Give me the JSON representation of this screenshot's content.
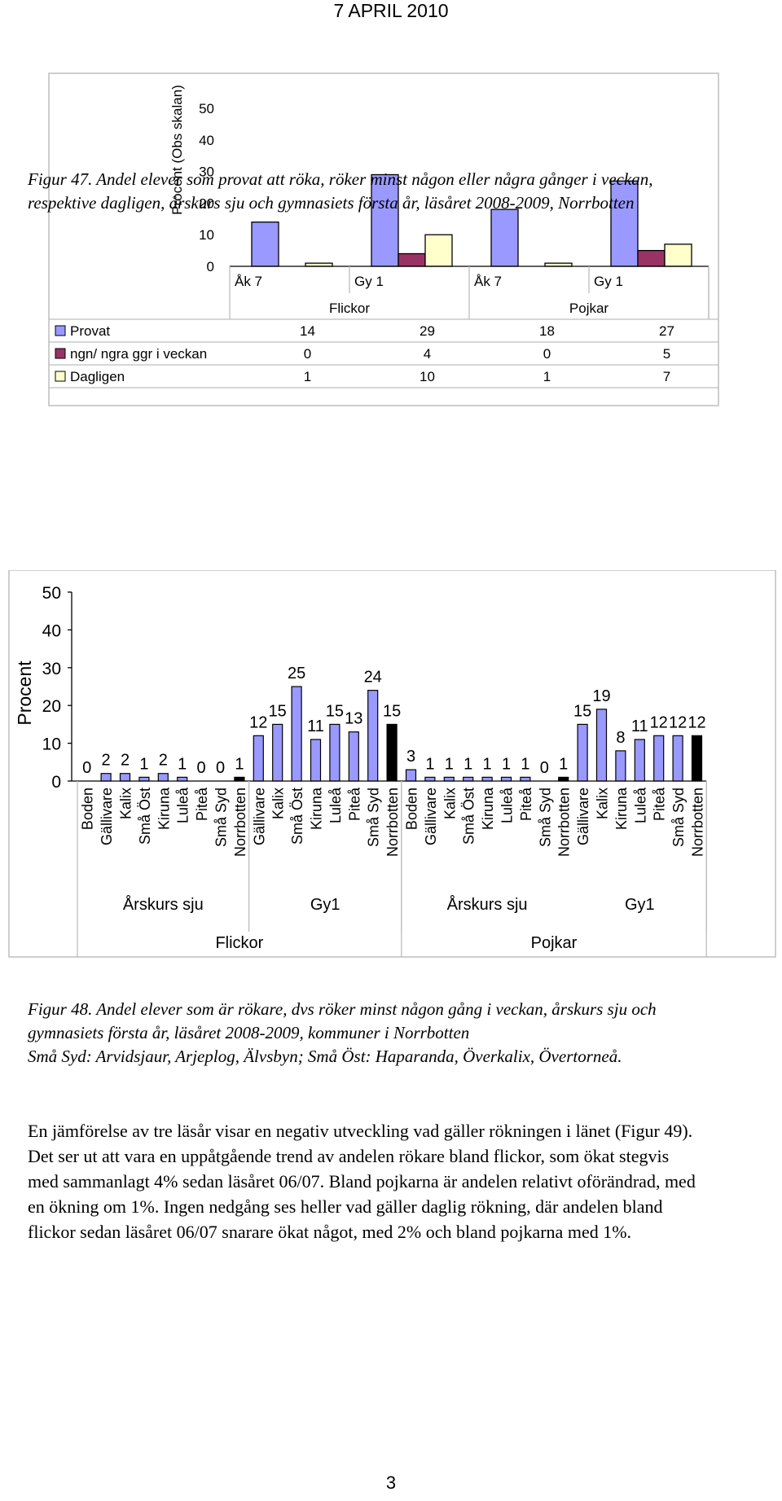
{
  "header": {
    "date": "7 APRIL 2010"
  },
  "figure47": {
    "chart_data": {
      "type": "bar",
      "ylabel": "Procent (Obs skalan)",
      "ylim": [
        0,
        50
      ],
      "yticks": [
        "50",
        "40",
        "30",
        "20",
        "10",
        "0"
      ],
      "categories": [
        "Åk 7",
        "Gy 1",
        "Åk 7",
        "Gy 1"
      ],
      "groups": [
        "Flickor",
        "Pojkar"
      ],
      "series": [
        {
          "name": "Provat",
          "color": "#9999FF",
          "values": [
            14,
            29,
            18,
            27
          ],
          "labels": [
            "14",
            "29",
            "18",
            "27"
          ]
        },
        {
          "name": "ngn/ ngra ggr i veckan",
          "color": "#993366",
          "values": [
            0,
            4,
            0,
            5
          ],
          "labels": [
            "0",
            "4",
            "0",
            "5"
          ]
        },
        {
          "name": "Dagligen",
          "color": "#FFFFCC",
          "values": [
            1,
            10,
            1,
            7
          ],
          "labels": [
            "1",
            "10",
            "1",
            "7"
          ]
        }
      ]
    },
    "caption": "Figur 47. Andel elever som provat att röka, röker minst någon eller några gånger i veckan, respektive dagligen, årskurs sju och gymnasiets första år, läsåret 2008-2009, Norrbotten"
  },
  "figure48": {
    "chart_data": {
      "type": "bar",
      "ylabel": "Procent",
      "ylim": [
        0,
        50
      ],
      "yticks": [
        "50",
        "40",
        "30",
        "20",
        "10",
        "0"
      ],
      "bar_color": "#9999FF",
      "highlight_color": "#000000",
      "segments": [
        {
          "name": "Årskurs sju",
          "group": "Flickor",
          "categories": [
            "Boden",
            "Gällivare",
            "Kalix",
            "Små Öst",
            "Kiruna",
            "Luleå",
            "Piteå",
            "Små Syd",
            "Norrbotten"
          ],
          "values": [
            0,
            2,
            2,
            1,
            2,
            1,
            0,
            0,
            1
          ],
          "labels": [
            "0",
            "2",
            "2",
            "1",
            "2",
            "1",
            "0",
            "0",
            "1"
          ]
        },
        {
          "name": "Gy1",
          "group": "Flickor",
          "categories": [
            "Gällivare",
            "Kalix",
            "Små Öst",
            "Kiruna",
            "Luleå",
            "Piteå",
            "Små Syd",
            "Norrbotten"
          ],
          "values": [
            12,
            15,
            25,
            11,
            15,
            13,
            24,
            15
          ],
          "labels": [
            "12",
            "15",
            "25",
            "11",
            "15",
            "13",
            "24",
            "15"
          ]
        },
        {
          "name": "Årskurs sju",
          "group": "Pojkar",
          "categories": [
            "Boden",
            "Gällivare",
            "Kalix",
            "Små Öst",
            "Kiruna",
            "Luleå",
            "Piteå",
            "Små Syd",
            "Norrbotten"
          ],
          "values": [
            3,
            1,
            1,
            1,
            1,
            1,
            1,
            0,
            1
          ],
          "labels": [
            "3",
            "1",
            "1",
            "1",
            "1",
            "1",
            "1",
            "0",
            "1"
          ]
        },
        {
          "name": "Gy1",
          "group": "Pojkar",
          "categories": [
            "Gällivare",
            "Kalix",
            "Kiruna",
            "Luleå",
            "Piteå",
            "Små Syd",
            "Norrbotten"
          ],
          "values": [
            15,
            19,
            8,
            11,
            12,
            12,
            12
          ],
          "labels": [
            "15",
            "19",
            "8",
            "11",
            "12",
            "12",
            "12"
          ]
        }
      ],
      "groups": [
        "Flickor",
        "Pojkar"
      ]
    },
    "caption_line1": "Figur 48. Andel elever som är rökare, dvs röker minst någon gång i veckan, årskurs sju och gymnasiets första år, läsåret 2008-2009,  kommuner i Norrbotten",
    "caption_line2": "Små Syd: Arvidsjaur, Arjeplog, Älvsbyn; Små Öst: Haparanda, Överkalix, Övertorneå."
  },
  "body": {
    "paragraph": "En jämförelse av tre läsår visar en negativ utveckling vad gäller rökningen i länet (Figur 49). Det ser ut att vara en uppåtgående trend av andelen rökare bland flickor, som ökat stegvis med sammanlagt 4% sedan läsåret 06/07. Bland pojkarna är andelen relativt oförändrad, med en ökning om 1%. Ingen nedgång ses heller vad gäller daglig rökning, där andelen bland flickor sedan läsåret 06/07 snarare ökat något, med 2% och bland pojkarna med 1%."
  },
  "footer": {
    "page_number": "3"
  }
}
